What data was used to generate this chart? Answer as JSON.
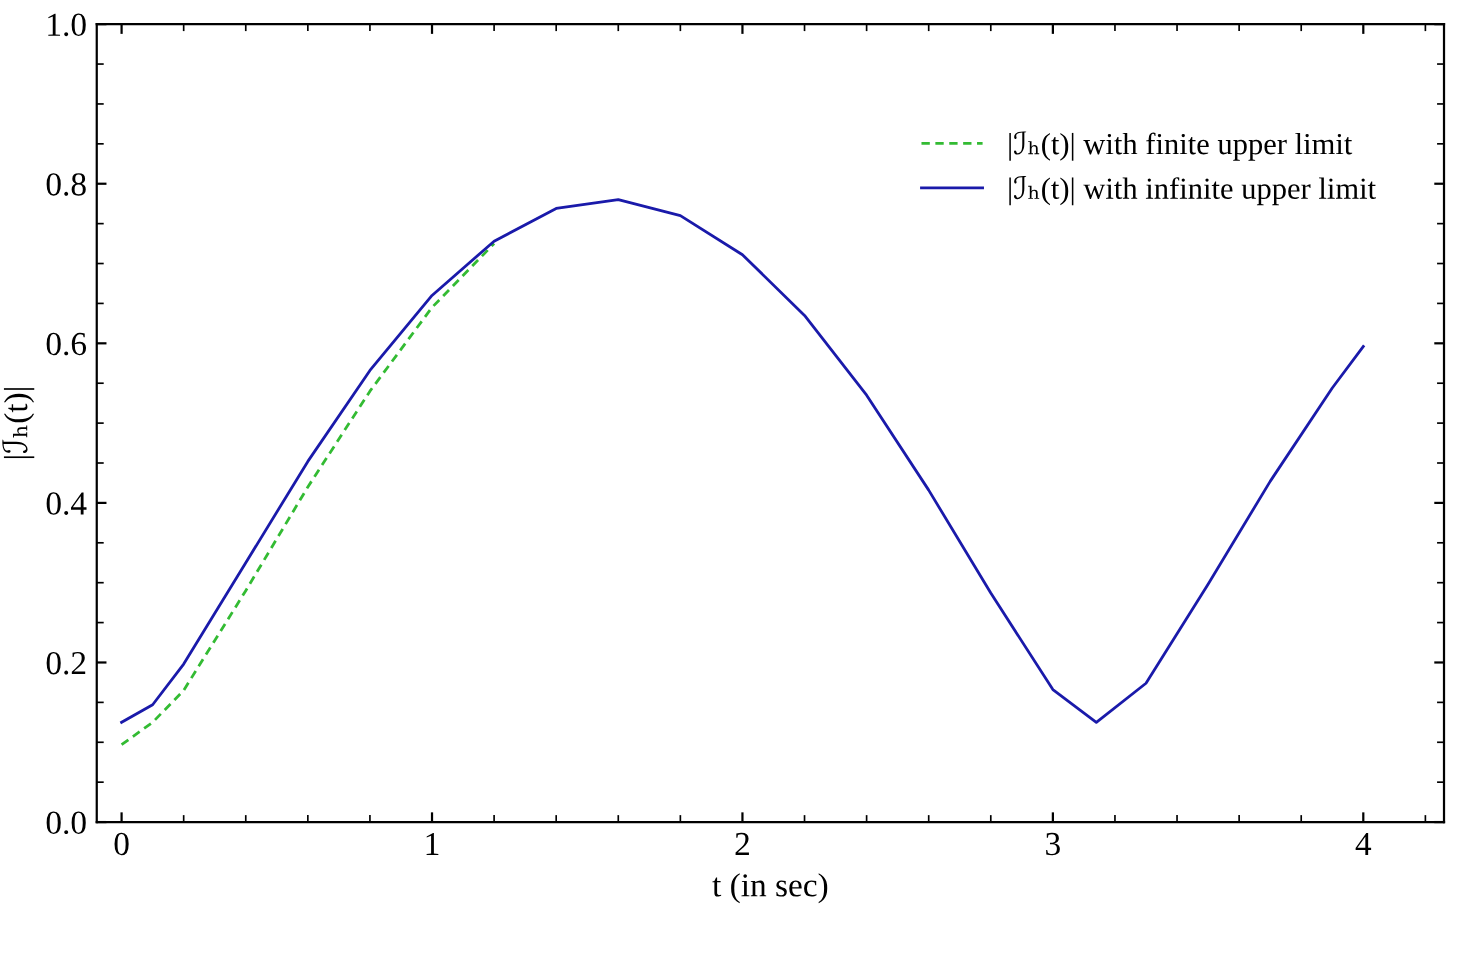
{
  "chart_data": {
    "type": "line",
    "xlabel": "t (in sec)",
    "ylabel": "|ℐₕ(t)|",
    "x": [
      0,
      0.1,
      0.2,
      0.4,
      0.6,
      0.8,
      1.0,
      1.2,
      1.4,
      1.6,
      1.8,
      2.0,
      2.2,
      2.4,
      2.6,
      2.8,
      3.0,
      3.14,
      3.3,
      3.5,
      3.7,
      3.9,
      4.0
    ],
    "series": [
      {
        "name": "|ℐₕ(t)| with finite upper limit",
        "color": "#33bb33",
        "line_style": "dashed",
        "values": [
          0.097,
          0.125,
          0.165,
          0.29,
          0.42,
          0.54,
          0.645,
          0.725,
          null,
          null,
          null,
          null,
          null,
          null,
          null,
          null,
          null,
          null,
          null,
          null,
          null,
          null,
          null
        ]
      },
      {
        "name": "|ℐₕ(t)| with infinite upper limit",
        "color": "#1a1aaa",
        "line_style": "solid",
        "values": [
          0.125,
          0.147,
          0.198,
          0.325,
          0.452,
          0.566,
          0.66,
          0.728,
          0.769,
          0.78,
          0.76,
          0.711,
          0.635,
          0.535,
          0.416,
          0.287,
          0.166,
          0.125,
          0.174,
          0.298,
          0.427,
          0.544,
          0.596
        ]
      }
    ],
    "xlim": [
      -0.08,
      4.26
    ],
    "ylim": [
      0,
      1
    ],
    "xticks": [
      0,
      1,
      2,
      3,
      4
    ],
    "yticks": [
      {
        "value": 0,
        "label": "0.0"
      },
      0.2,
      0.4,
      0.6,
      0.8,
      {
        "value": 1,
        "label": "1.0"
      }
    ],
    "grid": false,
    "legend": "top right",
    "marker": "none"
  }
}
